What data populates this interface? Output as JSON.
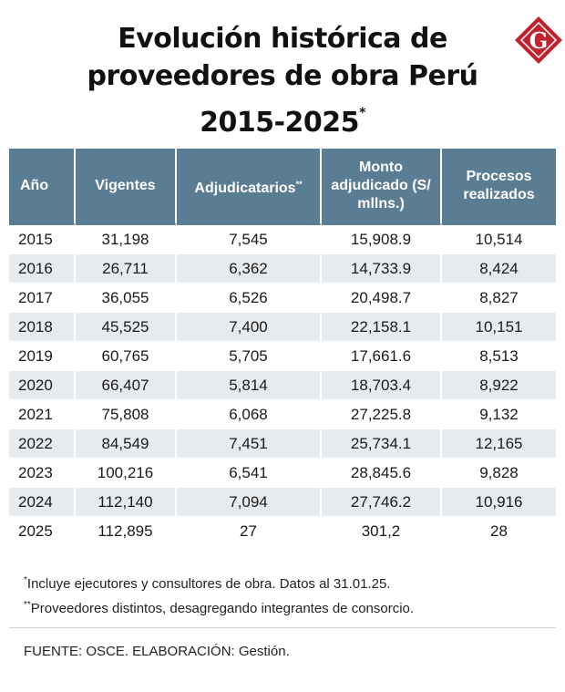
{
  "title": {
    "line1": "Evolución histórica de",
    "line2": "proveedores de obra Perú",
    "line3": "2015-2025",
    "marker": "*"
  },
  "logo": {
    "letter": "G",
    "icon": "gestion-logo-icon",
    "color": "#c0232d"
  },
  "colors": {
    "header_bg": "#5b7d94",
    "stripe": "#e8ebee"
  },
  "chart_data": {
    "type": "table",
    "title": "Evolución histórica de proveedores de obra Perú 2015-2025*",
    "columns": [
      {
        "label": "Año",
        "marker": ""
      },
      {
        "label": "Vigentes",
        "marker": ""
      },
      {
        "label": "Adjudicatarios",
        "marker": "**"
      },
      {
        "label": "Monto adjudicado (S/ mllns.)",
        "marker": ""
      },
      {
        "label": "Procesos realizados",
        "marker": ""
      }
    ],
    "rows": [
      [
        "2015",
        "31,198",
        "7,545",
        "15,908.9",
        "10,514"
      ],
      [
        "2016",
        "26,711",
        "6,362",
        "14,733.9",
        "8,424"
      ],
      [
        "2017",
        "36,055",
        "6,526",
        "20,498.7",
        "8,827"
      ],
      [
        "2018",
        "45,525",
        "7,400",
        "22,158.1",
        "10,151"
      ],
      [
        "2019",
        "60,765",
        "5,705",
        "17,661.6",
        "8,513"
      ],
      [
        "2020",
        "66,407",
        "5,814",
        "18,703.4",
        "8,922"
      ],
      [
        "2021",
        "75,808",
        "6,068",
        "27,225.8",
        "9,132"
      ],
      [
        "2022",
        "84,549",
        "7,451",
        "25,734.1",
        "12,165"
      ],
      [
        "2023",
        "100,216",
        "6,541",
        "28,845.6",
        "9,828"
      ],
      [
        "2024",
        "112,140",
        "7,094",
        "27,746.2",
        "10,916"
      ],
      [
        "2025",
        "112,895",
        "27",
        "301,2",
        "28"
      ]
    ]
  },
  "notes": {
    "note1_marker": "*",
    "note1": "Incluye ejecutores y consultores de obra. Datos al 31.01.25.",
    "note2_marker": "**",
    "note2": "Proveedores distintos, desagregando integrantes de consorcio."
  },
  "source": "FUENTE: OSCE. ELABORACIÓN: Gestión."
}
